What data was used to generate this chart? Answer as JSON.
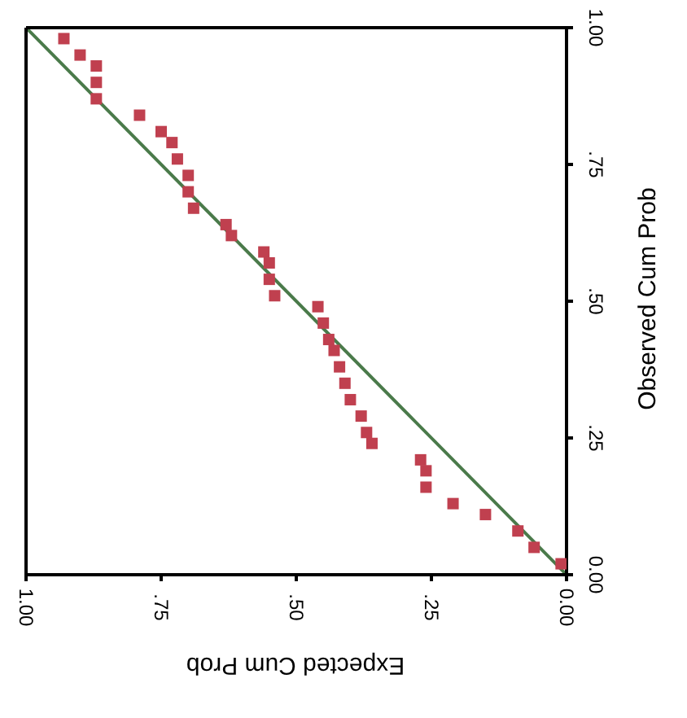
{
  "chart_data": {
    "type": "scatter",
    "xlabel": "Expected Cum Prob",
    "ylabel": "Observed Cum Prob",
    "xlim": [
      1,
      0
    ],
    "ylim": [
      0,
      1
    ],
    "xticks": [
      {
        "value": 1,
        "label": "1.00"
      },
      {
        "value": 0.75,
        "label": ".75"
      },
      {
        "value": 0.5,
        "label": ".50"
      },
      {
        "value": 0.25,
        "label": ".25"
      },
      {
        "value": 0,
        "label": "0.00"
      }
    ],
    "yticks": [
      {
        "value": 0,
        "label": "0.00"
      },
      {
        "value": 0.25,
        "label": ".25"
      },
      {
        "value": 0.5,
        "label": ".50"
      },
      {
        "value": 0.75,
        "label": ".75"
      },
      {
        "value": 1,
        "label": "1.00"
      }
    ],
    "marker": "square",
    "series": [
      {
        "color": "#c0404f",
        "x": [
          0.93,
          0.9,
          0.87,
          0.87,
          0.87,
          0.79,
          0.75,
          0.73,
          0.72,
          0.7,
          0.7,
          0.69,
          0.63,
          0.62,
          0.56,
          0.55,
          0.55,
          0.54,
          0.46,
          0.45,
          0.44,
          0.43,
          0.42,
          0.41,
          0.4,
          0.38,
          0.37,
          0.36,
          0.27,
          0.26,
          0.26,
          0.21,
          0.15,
          0.09,
          0.06,
          0.01
        ],
        "values": [
          0.98,
          0.95,
          0.93,
          0.9,
          0.87,
          0.84,
          0.81,
          0.79,
          0.76,
          0.73,
          0.7,
          0.67,
          0.64,
          0.62,
          0.59,
          0.57,
          0.54,
          0.51,
          0.49,
          0.46,
          0.43,
          0.41,
          0.38,
          0.35,
          0.32,
          0.29,
          0.26,
          0.24,
          0.21,
          0.19,
          0.16,
          0.13,
          0.11,
          0.08,
          0.05,
          0.02
        ]
      },
      {
        "type": "line",
        "marker": "none",
        "color": "#4a7a4a",
        "x": [
          0,
          1
        ],
        "values": [
          0,
          1
        ]
      }
    ]
  }
}
